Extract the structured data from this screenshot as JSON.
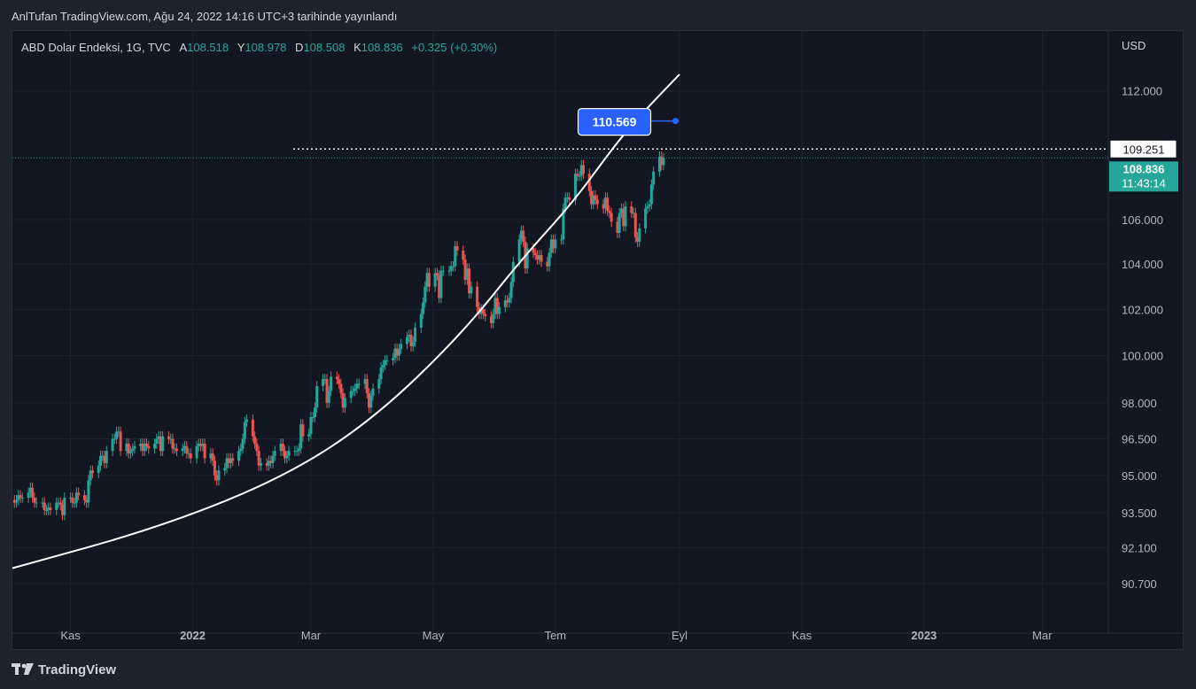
{
  "header": {
    "publish_line": "AnlTufan TradingView.com, Ağu 24, 2022 14:16 UTC+3 tarihinde yayınlandı"
  },
  "legend": {
    "symbol": "ABD Dolar Endeksi, 1G, TVC",
    "open_label": "A",
    "open_value": "108.518",
    "high_label": "Y",
    "high_value": "108.978",
    "low_label": "D",
    "low_value": "108.508",
    "close_label": "K",
    "close_value": "108.836",
    "change": "+0.325 (+0.30%)"
  },
  "footer": {
    "brand": "TradingView"
  },
  "colors": {
    "background": "#131722",
    "up": "#26a69a",
    "down": "#ef5350",
    "trendline": "#ffffff",
    "callout": "#2962ff",
    "grid": "#1f2330"
  },
  "chart_data": {
    "type": "candlestick",
    "currency_label": "USD",
    "y_ticks": [
      "112.000",
      "106.000",
      "104.000",
      "102.000",
      "100.000",
      "98.000",
      "96.500",
      "95.000",
      "93.500",
      "92.100",
      "90.700"
    ],
    "y_tick_values": [
      112.0,
      106.0,
      104.0,
      102.0,
      100.0,
      98.0,
      96.5,
      95.0,
      93.5,
      92.1,
      90.7
    ],
    "y_scale": "log",
    "ylim": [
      89.3,
      113.7
    ],
    "x_tick_labels": [
      "Kas",
      "2022",
      "Mar",
      "May",
      "Tem",
      "Eyl",
      "Kas",
      "2023",
      "Mar"
    ],
    "x_tick_dates": [
      "2021-11-01",
      "2022-01-01",
      "2022-03-01",
      "2022-05-01",
      "2022-07-01",
      "2022-09-01",
      "2022-11-01",
      "2023-01-01",
      "2023-03-01"
    ],
    "xlim": [
      "2021-10-03",
      "2023-04-03"
    ],
    "grid": true,
    "last_price": {
      "value": "108.836",
      "countdown": "11:43:14"
    },
    "horizontal_level": {
      "value": "109.251"
    },
    "callout": {
      "label": "110.569",
      "date": "2022-08-30",
      "value": 110.569
    },
    "trendline_points": [
      {
        "date": "2021-10-03",
        "value": 91.3
      },
      {
        "date": "2021-12-15",
        "value": 92.9
      },
      {
        "date": "2022-02-15",
        "value": 94.9
      },
      {
        "date": "2022-04-01",
        "value": 97.3
      },
      {
        "date": "2022-05-15",
        "value": 100.9
      },
      {
        "date": "2022-06-15",
        "value": 104.3
      },
      {
        "date": "2022-07-10",
        "value": 106.8
      },
      {
        "date": "2022-08-01",
        "value": 109.6
      },
      {
        "date": "2022-08-15",
        "value": 111.1
      },
      {
        "date": "2022-09-01",
        "value": 112.8
      }
    ],
    "closes": [
      {
        "date": "2021-10-01",
        "value": 94.0
      },
      {
        "date": "2021-10-04",
        "value": 93.9
      },
      {
        "date": "2021-10-05",
        "value": 94.0
      },
      {
        "date": "2021-10-06",
        "value": 94.2
      },
      {
        "date": "2021-10-07",
        "value": 94.1
      },
      {
        "date": "2021-10-08",
        "value": 94.1
      },
      {
        "date": "2021-10-11",
        "value": 94.3
      },
      {
        "date": "2021-10-12",
        "value": 94.5
      },
      {
        "date": "2021-10-13",
        "value": 94.1
      },
      {
        "date": "2021-10-14",
        "value": 93.9
      },
      {
        "date": "2021-10-15",
        "value": 93.9
      },
      {
        "date": "2021-10-18",
        "value": 93.9
      },
      {
        "date": "2021-10-19",
        "value": 93.6
      },
      {
        "date": "2021-10-20",
        "value": 93.6
      },
      {
        "date": "2021-10-21",
        "value": 93.7
      },
      {
        "date": "2021-10-22",
        "value": 93.6
      },
      {
        "date": "2021-10-25",
        "value": 93.9
      },
      {
        "date": "2021-10-26",
        "value": 93.9
      },
      {
        "date": "2021-10-27",
        "value": 93.8
      },
      {
        "date": "2021-10-28",
        "value": 93.4
      },
      {
        "date": "2021-10-29",
        "value": 94.1
      },
      {
        "date": "2021-11-01",
        "value": 94.1
      },
      {
        "date": "2021-11-02",
        "value": 93.9
      },
      {
        "date": "2021-11-03",
        "value": 93.9
      },
      {
        "date": "2021-11-04",
        "value": 94.3
      },
      {
        "date": "2021-11-05",
        "value": 94.2
      },
      {
        "date": "2021-11-08",
        "value": 94.0
      },
      {
        "date": "2021-11-09",
        "value": 93.9
      },
      {
        "date": "2021-11-10",
        "value": 94.8
      },
      {
        "date": "2021-11-11",
        "value": 95.2
      },
      {
        "date": "2021-11-12",
        "value": 95.1
      },
      {
        "date": "2021-11-15",
        "value": 95.4
      },
      {
        "date": "2021-11-16",
        "value": 95.8
      },
      {
        "date": "2021-11-17",
        "value": 95.8
      },
      {
        "date": "2021-11-18",
        "value": 95.5
      },
      {
        "date": "2021-11-19",
        "value": 96.0
      },
      {
        "date": "2021-11-22",
        "value": 96.5
      },
      {
        "date": "2021-11-23",
        "value": 96.5
      },
      {
        "date": "2021-11-24",
        "value": 96.8
      },
      {
        "date": "2021-11-25",
        "value": 96.8
      },
      {
        "date": "2021-11-26",
        "value": 96.0
      },
      {
        "date": "2021-11-29",
        "value": 96.3
      },
      {
        "date": "2021-11-30",
        "value": 95.9
      },
      {
        "date": "2021-12-01",
        "value": 96.0
      },
      {
        "date": "2021-12-02",
        "value": 96.1
      },
      {
        "date": "2021-12-03",
        "value": 96.2
      },
      {
        "date": "2021-12-06",
        "value": 96.3
      },
      {
        "date": "2021-12-07",
        "value": 96.0
      },
      {
        "date": "2021-12-08",
        "value": 96.3
      },
      {
        "date": "2021-12-09",
        "value": 96.2
      },
      {
        "date": "2021-12-10",
        "value": 96.1
      },
      {
        "date": "2021-12-13",
        "value": 96.3
      },
      {
        "date": "2021-12-14",
        "value": 96.5
      },
      {
        "date": "2021-12-15",
        "value": 96.6
      },
      {
        "date": "2021-12-16",
        "value": 96.0
      },
      {
        "date": "2021-12-17",
        "value": 96.6
      },
      {
        "date": "2021-12-20",
        "value": 96.5
      },
      {
        "date": "2021-12-21",
        "value": 96.5
      },
      {
        "date": "2021-12-22",
        "value": 96.1
      },
      {
        "date": "2021-12-23",
        "value": 96.1
      },
      {
        "date": "2021-12-24",
        "value": 96.0
      },
      {
        "date": "2021-12-27",
        "value": 96.1
      },
      {
        "date": "2021-12-28",
        "value": 96.2
      },
      {
        "date": "2021-12-29",
        "value": 95.9
      },
      {
        "date": "2021-12-30",
        "value": 95.9
      },
      {
        "date": "2021-12-31",
        "value": 95.7
      },
      {
        "date": "2022-01-03",
        "value": 96.2
      },
      {
        "date": "2022-01-04",
        "value": 96.3
      },
      {
        "date": "2022-01-05",
        "value": 96.2
      },
      {
        "date": "2022-01-06",
        "value": 96.3
      },
      {
        "date": "2022-01-07",
        "value": 95.7
      },
      {
        "date": "2022-01-10",
        "value": 95.9
      },
      {
        "date": "2022-01-11",
        "value": 95.6
      },
      {
        "date": "2022-01-12",
        "value": 95.0
      },
      {
        "date": "2022-01-13",
        "value": 94.8
      },
      {
        "date": "2022-01-14",
        "value": 95.2
      },
      {
        "date": "2022-01-17",
        "value": 95.3
      },
      {
        "date": "2022-01-18",
        "value": 95.7
      },
      {
        "date": "2022-01-19",
        "value": 95.5
      },
      {
        "date": "2022-01-20",
        "value": 95.7
      },
      {
        "date": "2022-01-21",
        "value": 95.6
      },
      {
        "date": "2022-01-24",
        "value": 96.0
      },
      {
        "date": "2022-01-25",
        "value": 96.1
      },
      {
        "date": "2022-01-26",
        "value": 96.5
      },
      {
        "date": "2022-01-27",
        "value": 97.2
      },
      {
        "date": "2022-01-28",
        "value": 97.3
      },
      {
        "date": "2022-01-31",
        "value": 96.6
      },
      {
        "date": "2022-02-01",
        "value": 96.3
      },
      {
        "date": "2022-02-02",
        "value": 96.0
      },
      {
        "date": "2022-02-03",
        "value": 95.4
      },
      {
        "date": "2022-02-04",
        "value": 95.5
      },
      {
        "date": "2022-02-07",
        "value": 95.4
      },
      {
        "date": "2022-02-08",
        "value": 95.6
      },
      {
        "date": "2022-02-09",
        "value": 95.5
      },
      {
        "date": "2022-02-10",
        "value": 95.8
      },
      {
        "date": "2022-02-11",
        "value": 96.0
      },
      {
        "date": "2022-02-14",
        "value": 96.3
      },
      {
        "date": "2022-02-15",
        "value": 96.0
      },
      {
        "date": "2022-02-16",
        "value": 95.7
      },
      {
        "date": "2022-02-17",
        "value": 95.8
      },
      {
        "date": "2022-02-18",
        "value": 96.0
      },
      {
        "date": "2022-02-21",
        "value": 96.0
      },
      {
        "date": "2022-02-22",
        "value": 96.0
      },
      {
        "date": "2022-02-23",
        "value": 96.1
      },
      {
        "date": "2022-02-24",
        "value": 97.1
      },
      {
        "date": "2022-02-25",
        "value": 96.6
      },
      {
        "date": "2022-02-28",
        "value": 96.7
      },
      {
        "date": "2022-03-01",
        "value": 97.4
      },
      {
        "date": "2022-03-02",
        "value": 97.4
      },
      {
        "date": "2022-03-03",
        "value": 97.8
      },
      {
        "date": "2022-03-04",
        "value": 98.7
      },
      {
        "date": "2022-03-07",
        "value": 99.0
      },
      {
        "date": "2022-03-08",
        "value": 99.0
      },
      {
        "date": "2022-03-09",
        "value": 98.0
      },
      {
        "date": "2022-03-10",
        "value": 98.5
      },
      {
        "date": "2022-03-11",
        "value": 99.1
      },
      {
        "date": "2022-03-14",
        "value": 99.0
      },
      {
        "date": "2022-03-15",
        "value": 98.8
      },
      {
        "date": "2022-03-16",
        "value": 98.4
      },
      {
        "date": "2022-03-17",
        "value": 97.8
      },
      {
        "date": "2022-03-18",
        "value": 98.2
      },
      {
        "date": "2022-03-21",
        "value": 98.5
      },
      {
        "date": "2022-03-22",
        "value": 98.5
      },
      {
        "date": "2022-03-23",
        "value": 98.6
      },
      {
        "date": "2022-03-24",
        "value": 98.8
      },
      {
        "date": "2022-03-25",
        "value": 98.8
      },
      {
        "date": "2022-03-28",
        "value": 99.0
      },
      {
        "date": "2022-03-29",
        "value": 98.4
      },
      {
        "date": "2022-03-30",
        "value": 97.8
      },
      {
        "date": "2022-03-31",
        "value": 98.3
      },
      {
        "date": "2022-04-01",
        "value": 98.6
      },
      {
        "date": "2022-04-04",
        "value": 99.0
      },
      {
        "date": "2022-04-05",
        "value": 99.5
      },
      {
        "date": "2022-04-06",
        "value": 99.6
      },
      {
        "date": "2022-04-07",
        "value": 99.8
      },
      {
        "date": "2022-04-08",
        "value": 99.8
      },
      {
        "date": "2022-04-11",
        "value": 99.9
      },
      {
        "date": "2022-04-12",
        "value": 100.3
      },
      {
        "date": "2022-04-13",
        "value": 100.0
      },
      {
        "date": "2022-04-14",
        "value": 100.3
      },
      {
        "date": "2022-04-15",
        "value": 100.5
      },
      {
        "date": "2022-04-18",
        "value": 100.8
      },
      {
        "date": "2022-04-19",
        "value": 100.9
      },
      {
        "date": "2022-04-20",
        "value": 100.4
      },
      {
        "date": "2022-04-21",
        "value": 100.6
      },
      {
        "date": "2022-04-22",
        "value": 101.2
      },
      {
        "date": "2022-04-25",
        "value": 101.8
      },
      {
        "date": "2022-04-26",
        "value": 102.3
      },
      {
        "date": "2022-04-27",
        "value": 103.0
      },
      {
        "date": "2022-04-28",
        "value": 103.6
      },
      {
        "date": "2022-04-29",
        "value": 103.0
      },
      {
        "date": "2022-05-02",
        "value": 103.6
      },
      {
        "date": "2022-05-03",
        "value": 103.5
      },
      {
        "date": "2022-05-04",
        "value": 102.5
      },
      {
        "date": "2022-05-05",
        "value": 103.7
      },
      {
        "date": "2022-05-06",
        "value": 103.7
      },
      {
        "date": "2022-05-09",
        "value": 103.7
      },
      {
        "date": "2022-05-10",
        "value": 103.9
      },
      {
        "date": "2022-05-11",
        "value": 103.9
      },
      {
        "date": "2022-05-12",
        "value": 104.8
      },
      {
        "date": "2022-05-13",
        "value": 104.6
      },
      {
        "date": "2022-05-16",
        "value": 104.2
      },
      {
        "date": "2022-05-17",
        "value": 103.3
      },
      {
        "date": "2022-05-18",
        "value": 103.8
      },
      {
        "date": "2022-05-19",
        "value": 102.7
      },
      {
        "date": "2022-05-20",
        "value": 103.0
      },
      {
        "date": "2022-05-23",
        "value": 102.1
      },
      {
        "date": "2022-05-24",
        "value": 101.8
      },
      {
        "date": "2022-05-25",
        "value": 102.0
      },
      {
        "date": "2022-05-26",
        "value": 101.8
      },
      {
        "date": "2022-05-27",
        "value": 101.7
      },
      {
        "date": "2022-05-30",
        "value": 101.4
      },
      {
        "date": "2022-05-31",
        "value": 101.8
      },
      {
        "date": "2022-06-01",
        "value": 102.5
      },
      {
        "date": "2022-06-02",
        "value": 101.8
      },
      {
        "date": "2022-06-03",
        "value": 102.1
      },
      {
        "date": "2022-06-06",
        "value": 102.4
      },
      {
        "date": "2022-06-07",
        "value": 102.3
      },
      {
        "date": "2022-06-08",
        "value": 102.5
      },
      {
        "date": "2022-06-09",
        "value": 103.2
      },
      {
        "date": "2022-06-10",
        "value": 104.1
      },
      {
        "date": "2022-06-13",
        "value": 105.1
      },
      {
        "date": "2022-06-14",
        "value": 105.5
      },
      {
        "date": "2022-06-15",
        "value": 105.0
      },
      {
        "date": "2022-06-16",
        "value": 103.8
      },
      {
        "date": "2022-06-17",
        "value": 104.7
      },
      {
        "date": "2022-06-20",
        "value": 104.5
      },
      {
        "date": "2022-06-21",
        "value": 104.4
      },
      {
        "date": "2022-06-22",
        "value": 104.2
      },
      {
        "date": "2022-06-23",
        "value": 104.4
      },
      {
        "date": "2022-06-24",
        "value": 104.1
      },
      {
        "date": "2022-06-27",
        "value": 103.9
      },
      {
        "date": "2022-06-28",
        "value": 104.5
      },
      {
        "date": "2022-06-29",
        "value": 105.1
      },
      {
        "date": "2022-06-30",
        "value": 104.7
      },
      {
        "date": "2022-07-01",
        "value": 105.1
      },
      {
        "date": "2022-07-04",
        "value": 105.1
      },
      {
        "date": "2022-07-05",
        "value": 106.5
      },
      {
        "date": "2022-07-06",
        "value": 107.0
      },
      {
        "date": "2022-07-07",
        "value": 107.0
      },
      {
        "date": "2022-07-08",
        "value": 106.9
      },
      {
        "date": "2022-07-11",
        "value": 108.1
      },
      {
        "date": "2022-07-12",
        "value": 108.0
      },
      {
        "date": "2022-07-13",
        "value": 108.0
      },
      {
        "date": "2022-07-14",
        "value": 108.5
      },
      {
        "date": "2022-07-15",
        "value": 108.1
      },
      {
        "date": "2022-07-18",
        "value": 107.3
      },
      {
        "date": "2022-07-19",
        "value": 106.7
      },
      {
        "date": "2022-07-20",
        "value": 107.1
      },
      {
        "date": "2022-07-21",
        "value": 106.9
      },
      {
        "date": "2022-07-22",
        "value": 106.7
      },
      {
        "date": "2022-07-25",
        "value": 106.5
      },
      {
        "date": "2022-07-26",
        "value": 107.0
      },
      {
        "date": "2022-07-27",
        "value": 106.4
      },
      {
        "date": "2022-07-28",
        "value": 106.3
      },
      {
        "date": "2022-07-29",
        "value": 105.9
      },
      {
        "date": "2022-08-01",
        "value": 105.4
      },
      {
        "date": "2022-08-02",
        "value": 106.3
      },
      {
        "date": "2022-08-03",
        "value": 106.5
      },
      {
        "date": "2022-08-04",
        "value": 105.7
      },
      {
        "date": "2022-08-05",
        "value": 106.6
      },
      {
        "date": "2022-08-08",
        "value": 106.3
      },
      {
        "date": "2022-08-09",
        "value": 106.3
      },
      {
        "date": "2022-08-10",
        "value": 105.2
      },
      {
        "date": "2022-08-11",
        "value": 105.0
      },
      {
        "date": "2022-08-12",
        "value": 105.6
      },
      {
        "date": "2022-08-15",
        "value": 106.5
      },
      {
        "date": "2022-08-16",
        "value": 106.6
      },
      {
        "date": "2022-08-17",
        "value": 106.7
      },
      {
        "date": "2022-08-18",
        "value": 107.6
      },
      {
        "date": "2022-08-19",
        "value": 108.2
      },
      {
        "date": "2022-08-22",
        "value": 108.9
      },
      {
        "date": "2022-08-23",
        "value": 108.5
      },
      {
        "date": "2022-08-24",
        "value": 108.836
      }
    ]
  }
}
